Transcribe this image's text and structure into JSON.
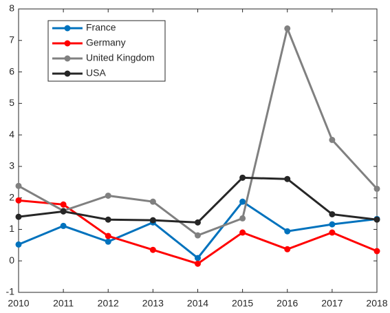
{
  "chart_data": {
    "type": "line",
    "x": [
      2010,
      2011,
      2012,
      2013,
      2014,
      2015,
      2016,
      2017,
      2018
    ],
    "series": [
      {
        "name": "France",
        "color": "#0072bd",
        "values": [
          0.52,
          1.11,
          0.61,
          1.22,
          0.09,
          1.88,
          0.94,
          1.16,
          1.33
        ]
      },
      {
        "name": "Germany",
        "color": "#ff0000",
        "values": [
          1.92,
          1.79,
          0.79,
          0.35,
          -0.09,
          0.9,
          0.37,
          0.9,
          0.31
        ]
      },
      {
        "name": "United Kingdom",
        "color": "#808080",
        "values": [
          2.38,
          1.59,
          2.07,
          1.88,
          0.81,
          1.35,
          7.38,
          3.84,
          2.29
        ]
      },
      {
        "name": "USA",
        "color": "#262626",
        "values": [
          1.4,
          1.57,
          1.31,
          1.29,
          1.22,
          2.64,
          2.6,
          1.48,
          1.31
        ]
      }
    ],
    "xlim": [
      2010,
      2018
    ],
    "xticks": [
      2010,
      2011,
      2012,
      2013,
      2014,
      2015,
      2016,
      2017,
      2018
    ],
    "ylim": [
      -1,
      8
    ],
    "yticks": [
      -1,
      0,
      1,
      2,
      3,
      4,
      5,
      6,
      7,
      8
    ],
    "legend": "upper-left"
  }
}
